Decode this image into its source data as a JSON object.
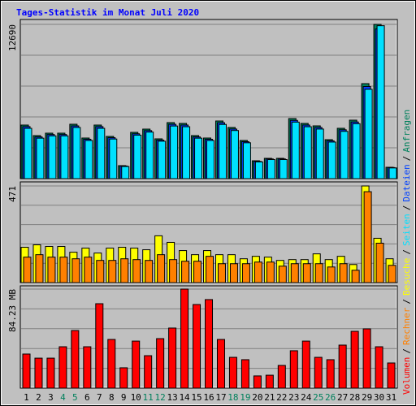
{
  "title": "Tages-Statistik im Monat Juli 2020",
  "legend_separator": "/",
  "chart_data": [
    {
      "type": "bar",
      "series": [
        {
          "name": "Anfragen",
          "color": "#00805c",
          "values": [
            4408,
            3540,
            3740,
            3740,
            4475,
            3340,
            4408,
            3473,
            1069,
            3807,
            4074,
            3273,
            4608,
            4542,
            3540,
            3340,
            4742,
            4208,
            3139,
            1469,
            1670,
            1670,
            4942,
            4542,
            4341,
            3206,
            4141,
            4809,
            7814,
            12690,
            935
          ]
        },
        {
          "name": "Dateien",
          "color": "#0040ff",
          "values": [
            4280,
            3430,
            3630,
            3630,
            4340,
            3240,
            4280,
            3370,
            1040,
            3690,
            3950,
            3170,
            4470,
            4410,
            3430,
            3240,
            4600,
            4080,
            3040,
            1420,
            1620,
            1620,
            4790,
            4410,
            4210,
            3110,
            4020,
            4660,
            7580,
            12310,
            910
          ]
        },
        {
          "name": "Seiten",
          "color": "#00e0ff",
          "values": [
            4140,
            3330,
            3520,
            3520,
            4210,
            3140,
            4140,
            3260,
            1000,
            3580,
            3830,
            3080,
            4330,
            4270,
            3330,
            3140,
            4460,
            3960,
            2950,
            1380,
            1570,
            1570,
            4650,
            4270,
            4080,
            3010,
            3890,
            4520,
            7350,
            12580,
            880
          ]
        }
      ],
      "ylim": [
        0,
        12690
      ],
      "yticks": [
        12690
      ],
      "grid": true
    },
    {
      "type": "bar",
      "series": [
        {
          "name": "Besuche",
          "color": "#ffff00",
          "values": [
            172,
            184,
            176,
            176,
            148,
            168,
            144,
            168,
            172,
            168,
            160,
            228,
            196,
            156,
            136,
            156,
            136,
            136,
            116,
            128,
            124,
            108,
            112,
            112,
            140,
            112,
            128,
            88,
            471,
            216,
            116
          ]
        },
        {
          "name": "Rechner",
          "color": "#ff8000",
          "values": [
            124,
            136,
            124,
            124,
            116,
            124,
            108,
            108,
            116,
            112,
            108,
            136,
            112,
            104,
            104,
            128,
            92,
            92,
            92,
            100,
            100,
            80,
            92,
            92,
            92,
            76,
            92,
            60,
            443,
            192,
            84
          ]
        }
      ],
      "ylim": [
        0,
        471
      ],
      "yticks": [
        471
      ],
      "grid": true
    },
    {
      "type": "bar",
      "categories": [
        "1",
        "2",
        "3",
        "4",
        "5",
        "6",
        "7",
        "8",
        "9",
        "10",
        "11",
        "12",
        "13",
        "14",
        "15",
        "16",
        "17",
        "18",
        "19",
        "20",
        "21",
        "22",
        "23",
        "24",
        "25",
        "26",
        "27",
        "28",
        "29",
        "30",
        "31"
      ],
      "label_colors": [
        "#000000",
        "#000000",
        "#000000",
        "#00805c",
        "#00805c",
        "#000000",
        "#000000",
        "#000000",
        "#000000",
        "#000000",
        "#00805c",
        "#00805c",
        "#000000",
        "#000000",
        "#000000",
        "#000000",
        "#000000",
        "#00805c",
        "#00805c",
        "#000000",
        "#000000",
        "#000000",
        "#000000",
        "#000000",
        "#00805c",
        "#00805c",
        "#000000",
        "#000000",
        "#000000",
        "#000000",
        "#000000"
      ],
      "series": [
        {
          "name": "Volumen",
          "color": "#ff0000",
          "values": [
            29.0,
            25.5,
            25.5,
            35.2,
            49.0,
            35.2,
            71.8,
            41.4,
            17.3,
            40.0,
            27.6,
            42.1,
            51.1,
            84.23,
            71.1,
            75.3,
            41.4,
            26.2,
            24.2,
            10.4,
            11.0,
            19.3,
            31.8,
            40.0,
            26.2,
            24.2,
            36.6,
            48.3,
            50.4,
            35.2,
            21.4
          ]
        }
      ],
      "ylim": [
        0,
        84.23
      ],
      "yticks": [
        {
          "value": 84.23,
          "label": "84.23 MB"
        }
      ],
      "grid": true
    }
  ]
}
